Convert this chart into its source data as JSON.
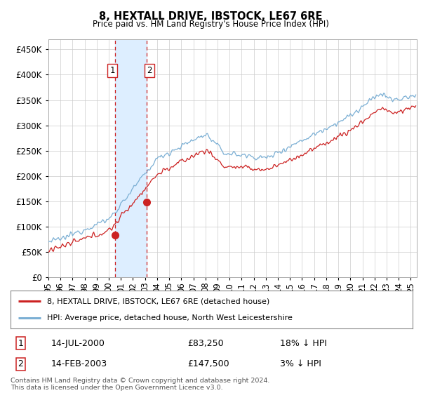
{
  "title": "8, HEXTALL DRIVE, IBSTOCK, LE67 6RE",
  "subtitle": "Price paid vs. HM Land Registry's House Price Index (HPI)",
  "ytick_values": [
    0,
    50000,
    100000,
    150000,
    200000,
    250000,
    300000,
    350000,
    400000,
    450000
  ],
  "ylim": [
    0,
    470000
  ],
  "xlim_start": 1995.0,
  "xlim_end": 2025.5,
  "hpi_color": "#7bafd4",
  "price_color": "#cc2222",
  "sale1_date": 2000.54,
  "sale1_price": 83250,
  "sale2_date": 2003.12,
  "sale2_price": 147500,
  "shade_color": "#ddeeff",
  "vline_color": "#cc2222",
  "legend_label1": "8, HEXTALL DRIVE, IBSTOCK, LE67 6RE (detached house)",
  "legend_label2": "HPI: Average price, detached house, North West Leicestershire",
  "table_row1": [
    "1",
    "14-JUL-2000",
    "£83,250",
    "18% ↓ HPI"
  ],
  "table_row2": [
    "2",
    "14-FEB-2003",
    "£147,500",
    "3% ↓ HPI"
  ],
  "footer": "Contains HM Land Registry data © Crown copyright and database right 2024.\nThis data is licensed under the Open Government Licence v3.0.",
  "background_color": "#ffffff",
  "grid_color": "#cccccc"
}
